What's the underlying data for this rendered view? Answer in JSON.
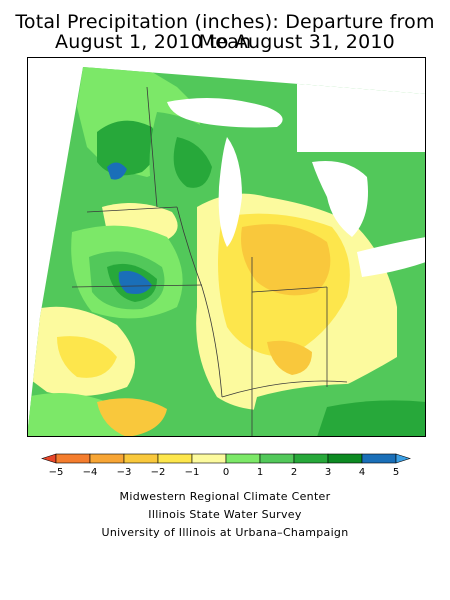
{
  "title": {
    "line1": "Total Precipitation (inches): Departure from Mean",
    "line2": "August 1, 2010 to August 31, 2010"
  },
  "legend": {
    "ticks": [
      "−5",
      "−4",
      "−3",
      "−2",
      "−1",
      "0",
      "1",
      "2",
      "3",
      "4",
      "5"
    ],
    "colors": [
      "#e8462a",
      "#f47d2e",
      "#f7a535",
      "#f9c83c",
      "#fde64c",
      "#fcfa9e",
      "#7ce868",
      "#52c85a",
      "#27a83a",
      "#0d8a22",
      "#1a6fb8",
      "#3b9fe4"
    ]
  },
  "credits": {
    "line1": "Midwestern Regional Climate Center",
    "line2": "Illinois State Water Survey",
    "line3": "University of Illinois at Urbana–Champaign"
  },
  "palette": {
    "lake_white": "#ffffff",
    "border_line": "#3a3a3a",
    "frame": "#000000"
  }
}
